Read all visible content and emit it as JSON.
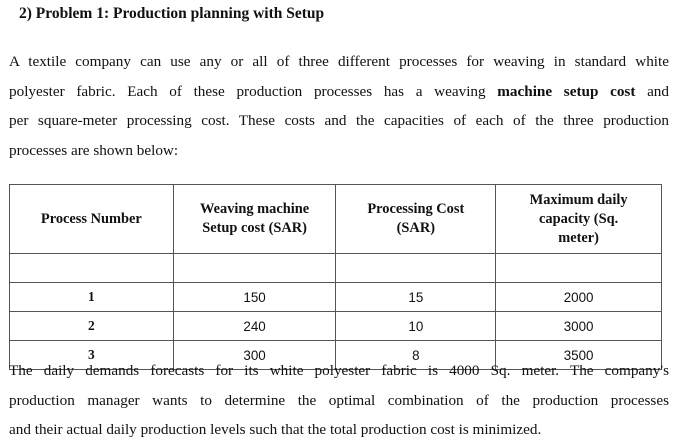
{
  "heading": "2)  Problem 1: Production planning with Setup",
  "intro": {
    "line1": "A textile company can use any or all of three different processes for weaving in standard white",
    "line2_pre": "polyester fabric. Each of these production processes has a weaving ",
    "line2_bold": "machine setup cost",
    "line2_post": " and",
    "line3": "per square-meter processing cost. These costs and the capacities of each of the three production",
    "line4": "processes are shown below:"
  },
  "table": {
    "headers": [
      "Process Number",
      "Weaving machine Setup cost (SAR)",
      "Processing Cost (SAR)",
      "Maximum daily capacity (Sq. meter)"
    ],
    "header_lines": [
      [
        "Process Number"
      ],
      [
        "Weaving machine",
        "Setup cost (SAR)"
      ],
      [
        "Processing Cost",
        "(SAR)"
      ],
      [
        "Maximum daily",
        "capacity (Sq.",
        "meter)"
      ]
    ],
    "rows": [
      [
        "1",
        "150",
        "15",
        "2000"
      ],
      [
        "2",
        "240",
        "10",
        "3000"
      ],
      [
        "3",
        "300",
        "8",
        "3500"
      ]
    ]
  },
  "closing": {
    "line1": "The daily demands forecasts for its white polyester fabric is 4000 Sq. meter. The company's",
    "line2": "production manager wants to determine the optimal combination of the production processes",
    "line3": "and their actual daily production levels such that the total production cost is minimized."
  }
}
